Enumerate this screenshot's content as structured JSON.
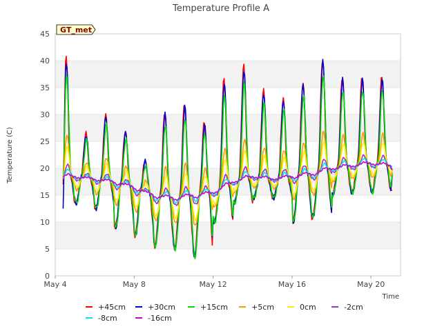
{
  "chart_data": {
    "type": "line",
    "title": "Temperature Profile A",
    "xlabel": "Time",
    "ylabel": "Temperature (C)",
    "badge": "GT_met",
    "ylim": [
      0,
      45
    ],
    "yticks": [
      0,
      5,
      10,
      15,
      20,
      25,
      30,
      35,
      40,
      45
    ],
    "xlim": [
      0,
      17.5
    ],
    "xticks": [
      {
        "day": 0,
        "label": "May 4"
      },
      {
        "day": 4,
        "label": "May 8"
      },
      {
        "day": 8,
        "label": "May 12"
      },
      {
        "day": 12,
        "label": "May 16"
      },
      {
        "day": 16,
        "label": "May 20"
      }
    ],
    "grid": true,
    "legend_position": "bottom",
    "daily_min": [
      13,
      13.5,
      12.5,
      9,
      7.5,
      5.5,
      5,
      3.5,
      10,
      13.5,
      14.5,
      14.5,
      10,
      11,
      15,
      15.5,
      15.5,
      15.5
    ],
    "daily_max": [
      40.5,
      26.5,
      30,
      27,
      21.5,
      30.5,
      32,
      28.5,
      36.5,
      39,
      34.5,
      33,
      36,
      40.5,
      37,
      37,
      37,
      37
    ],
    "series": [
      {
        "name": "+45cm",
        "color": "#ff0000",
        "amplitude": 1.0,
        "start": 17,
        "end": 16,
        "min_scale": 1.0
      },
      {
        "name": "+30cm",
        "color": "#0000cc",
        "amplitude": 0.97,
        "start": 12.5,
        "end": 19.5,
        "min_scale": 1.0
      },
      {
        "name": "+15cm",
        "color": "#00dd00",
        "amplitude": 0.85,
        "start": 18,
        "end": 20,
        "min_scale": 1.0
      },
      {
        "name": "+5cm",
        "color": "#ff9900",
        "amplitude": 0.35,
        "start": 18,
        "end": 20,
        "min_scale": 0.5
      },
      {
        "name": "0cm",
        "color": "#ffee00",
        "amplitude": 0.25,
        "start": 18,
        "end": 20,
        "min_scale": 0.4
      },
      {
        "name": "-2cm",
        "color": "#9933cc",
        "amplitude": 0.1,
        "start": 18,
        "end": 20,
        "min_scale": 0.15
      },
      {
        "name": "-8cm",
        "color": "#00e5e5",
        "amplitude": 0.06,
        "start": 18.5,
        "end": 20.5,
        "min_scale": 0.1
      },
      {
        "name": "-16cm",
        "color": "#cc00cc",
        "amplitude": 0.02,
        "start": 18.5,
        "end": 19.5,
        "min_scale": 0.05
      }
    ],
    "baseline_by_day": [
      18.5,
      18.5,
      18,
      17.5,
      16.5,
      15,
      14.5,
      15,
      15.5,
      17.5,
      18.5,
      18,
      18.5,
      19,
      20,
      20.5,
      21,
      20.5
    ]
  }
}
